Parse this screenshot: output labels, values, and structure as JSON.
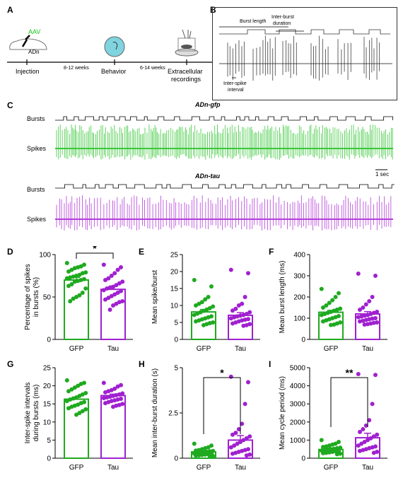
{
  "panel_labels": {
    "A": "A",
    "B": "B",
    "C": "C",
    "D": "D",
    "E": "E",
    "F": "F",
    "G": "G",
    "H": "H",
    "I": "I"
  },
  "panel_a": {
    "aav": "AAV",
    "adn": "ADn",
    "injection": "Injection",
    "interval1": "8-12 weeks",
    "behavior": "Behavior",
    "interval2": "6-14 weeks",
    "extracellular_1": "Extracellular",
    "extracellular_2": "recordings"
  },
  "panel_b": {
    "burst_length": "Burst length",
    "inter_burst_1": "Inter-burst",
    "inter_burst_2": "duration",
    "isi_1": "Inter-spike",
    "isi_2": "interval"
  },
  "panel_c": {
    "title_gfp": "ADn-gfp",
    "title_tau": "ADn-tau",
    "bursts": "Bursts",
    "spikes": "Spikes",
    "scale": "1 sec",
    "colors": {
      "gfp": "#3cc83c",
      "tau": "#b43fd8"
    }
  },
  "colors": {
    "gfp": "#1faa1f",
    "tau": "#a020d0"
  },
  "chart_data": [
    {
      "panel": "D",
      "type": "bar",
      "categories": [
        "GFP",
        "Tau"
      ],
      "ylabel": "Percentage of spikes in bursts (%)",
      "ylabel_lines": [
        "Percentage of spikes",
        "in bursts (%)"
      ],
      "ylim": [
        0,
        100
      ],
      "yticks": [
        "0",
        "50",
        "100"
      ],
      "ytick_values": [
        0,
        50,
        100
      ],
      "means": [
        70,
        59
      ],
      "sem": [
        3,
        4
      ],
      "points": [
        [
          90,
          88,
          86,
          85,
          84,
          82,
          80,
          79,
          78,
          76,
          75,
          74,
          73,
          72,
          71,
          70,
          69,
          68,
          65,
          63,
          60,
          55,
          52,
          50,
          48,
          45
        ],
        [
          88,
          85,
          82,
          78,
          75,
          72,
          70,
          68,
          66,
          64,
          62,
          61,
          60,
          58,
          57,
          55,
          53,
          51,
          49,
          47,
          45,
          44,
          42,
          40,
          35
        ]
      ],
      "significance": "*"
    },
    {
      "panel": "E",
      "type": "bar",
      "categories": [
        "GFP",
        "Tau"
      ],
      "ylabel": "Mean spike/burst",
      "ylabel_lines": [
        "Mean spike/burst"
      ],
      "ylim": [
        0,
        25
      ],
      "yticks": [
        "0",
        "5",
        "10",
        "15",
        "20",
        "25"
      ],
      "ytick_values": [
        0,
        5,
        10,
        15,
        20,
        25
      ],
      "means": [
        8.1,
        7.1
      ],
      "sem": [
        0.7,
        0.8
      ],
      "points": [
        [
          17.5,
          15.6,
          12.5,
          11.8,
          11,
          10.5,
          10,
          9.7,
          9.2,
          8.8,
          8.4,
          8,
          7.6,
          7.2,
          6.8,
          6.5,
          6.2,
          5.9,
          5.6,
          5.3,
          5,
          4.8,
          4.5,
          4.2
        ],
        [
          20.5,
          19.5,
          12.5,
          10.5,
          10,
          9,
          8.5,
          8,
          7.5,
          7.2,
          7,
          6.8,
          6.5,
          6.2,
          6,
          5.8,
          5.6,
          5.3,
          5,
          4.7,
          4.5,
          4.2,
          4
        ]
      ],
      "significance": ""
    },
    {
      "panel": "F",
      "type": "bar",
      "categories": [
        "GFP",
        "Tau"
      ],
      "ylabel": "Mean burst length (ms)",
      "ylabel_lines": [
        "Mean burst length (ms)"
      ],
      "ylim": [
        0,
        400
      ],
      "yticks": [
        "0",
        "100",
        "200",
        "300",
        "400"
      ],
      "ytick_values": [
        0,
        100,
        200,
        300,
        400
      ],
      "means": [
        128,
        120
      ],
      "sem": [
        9,
        11
      ],
      "points": [
        [
          238,
          218,
          200,
          185,
          172,
          160,
          150,
          145,
          140,
          135,
          130,
          125,
          120,
          115,
          110,
          105,
          100,
          95,
          90,
          85,
          80,
          75,
          70,
          68
        ],
        [
          310,
          300,
          200,
          180,
          165,
          150,
          140,
          130,
          125,
          120,
          115,
          112,
          108,
          105,
          100,
          98,
          95,
          92,
          88,
          85,
          80,
          78,
          75,
          72,
          70
        ]
      ],
      "significance": ""
    },
    {
      "panel": "G",
      "type": "bar",
      "categories": [
        "GFP",
        "Tau"
      ],
      "ylabel": "Inter-spike intervals during bursts (ms)",
      "ylabel_lines": [
        "Inter-spike intervals",
        "during bursts (ms)"
      ],
      "ylim": [
        0,
        25
      ],
      "yticks": [
        "0",
        "5",
        "10",
        "15",
        "20",
        "25"
      ],
      "ytick_values": [
        0,
        5,
        10,
        15,
        20,
        25
      ],
      "means": [
        16.3,
        17.3
      ],
      "sem": [
        0.5,
        0.4
      ],
      "points": [
        [
          21.5,
          20.8,
          20.5,
          20,
          19.5,
          19,
          18.5,
          18,
          17.6,
          17.2,
          16.8,
          16.5,
          16.2,
          15.8,
          15.5,
          15.2,
          14.8,
          14.5,
          14.2,
          13.8,
          13.5,
          13,
          12.5,
          12
        ],
        [
          20.8,
          20.2,
          19.8,
          19.2,
          18.8,
          18.5,
          18.2,
          17.9,
          17.6,
          17.4,
          17.2,
          17,
          16.8,
          16.6,
          16.4,
          16.2,
          16,
          15.8,
          15.5,
          15.2,
          15,
          14.7,
          14.5,
          14.2
        ]
      ],
      "significance": ""
    },
    {
      "panel": "H",
      "type": "bar",
      "categories": [
        "GFP",
        "Tau"
      ],
      "ylabel": "Mean inter-burst duration (s)",
      "ylabel_lines": [
        "Mean inter-burst duration (s)"
      ],
      "ylim": [
        0,
        5
      ],
      "yticks": [
        "0",
        "2.5",
        "5"
      ],
      "ytick_values": [
        0,
        2.5,
        5
      ],
      "means": [
        0.35,
        1.0
      ],
      "sem": [
        0.05,
        0.25
      ],
      "points": [
        [
          0.8,
          0.7,
          0.6,
          0.55,
          0.5,
          0.45,
          0.42,
          0.4,
          0.38,
          0.35,
          0.33,
          0.3,
          0.28,
          0.26,
          0.24,
          0.22,
          0.2,
          0.18,
          0.16,
          0.14,
          0.12,
          0.1
        ],
        [
          4.5,
          4.2,
          3,
          1.9,
          1.6,
          1.4,
          1.3,
          1.2,
          1.1,
          1,
          0.9,
          0.8,
          0.7,
          0.6,
          0.5,
          0.45,
          0.4,
          0.35,
          0.3,
          0.25,
          0.2,
          0.15
        ]
      ],
      "significance": "*"
    },
    {
      "panel": "I",
      "type": "bar",
      "categories": [
        "GFP",
        "Tau"
      ],
      "ylabel": "Mean cycle period (ms)",
      "ylabel_lines": [
        "Mean cycle period (ms)"
      ],
      "ylim": [
        0,
        5000
      ],
      "yticks": [
        "0",
        "1000",
        "2000",
        "3000",
        "4000",
        "5000"
      ],
      "ytick_values": [
        0,
        1000,
        2000,
        3000,
        4000,
        5000
      ],
      "means": [
        480,
        1130
      ],
      "sem": [
        50,
        250
      ],
      "points": [
        [
          1000,
          900,
          800,
          750,
          700,
          650,
          620,
          580,
          550,
          520,
          500,
          480,
          450,
          420,
          400,
          380,
          350,
          320,
          300,
          280,
          250,
          220
        ],
        [
          4650,
          4600,
          3000,
          2100,
          1800,
          1600,
          1450,
          1300,
          1200,
          1100,
          1000,
          900,
          800,
          700,
          650,
          600,
          550,
          500,
          450,
          400,
          350,
          300
        ]
      ],
      "significance": "**"
    }
  ]
}
